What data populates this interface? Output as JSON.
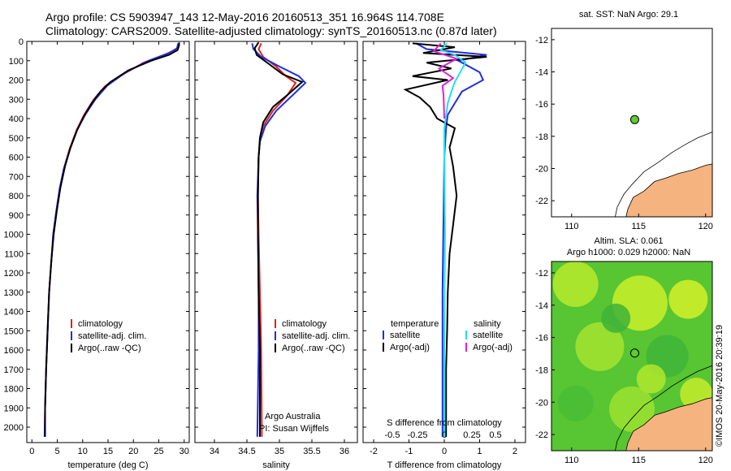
{
  "header": {
    "line1": "Argo profile: CS 5903947_143 12-May-2016 20160513_351 16.964S 114.708E",
    "line2": "Climatology: CARS2009. Satellite-adjusted climatology: synTS_20160513.nc (0.87d later)"
  },
  "colors": {
    "climatology": "#e02020",
    "satellite": "#1f2fe0",
    "argo": "#000000",
    "sal_satellite": "#20e0f0",
    "sal_argo": "#e020e0",
    "land": "#f4b37f",
    "dot": "#5ecb2f"
  },
  "depth_axis": {
    "ticks": [
      "0",
      "100",
      "200",
      "300",
      "400",
      "500",
      "600",
      "700",
      "800",
      "900",
      "1000",
      "1100",
      "1200",
      "1300",
      "1400",
      "1500",
      "1600",
      "1700",
      "1800",
      "1900",
      "2000"
    ],
    "range": [
      0,
      2080
    ]
  },
  "chart_data": [
    {
      "id": "temperature",
      "type": "line",
      "xlabel": "temperature (deg C)",
      "xlim": [
        -1,
        31
      ],
      "xticks": [
        "0",
        "5",
        "10",
        "15",
        "20",
        "25",
        "30"
      ],
      "ylim": [
        0,
        2080
      ],
      "legend": [
        "climatology",
        "satellite-adj. clim.",
        "Argo(..raw -QC)"
      ],
      "series": [
        {
          "name": "climatology",
          "points": [
            [
              29,
              10
            ],
            [
              28.5,
              40
            ],
            [
              26.5,
              65
            ],
            [
              22,
              110
            ],
            [
              18,
              170
            ],
            [
              14.5,
              230
            ],
            [
              12.2,
              300
            ],
            [
              10.3,
              380
            ],
            [
              8.8,
              460
            ],
            [
              7.4,
              560
            ],
            [
              6.3,
              660
            ],
            [
              5.5,
              760
            ],
            [
              4.8,
              880
            ],
            [
              4.2,
              1000
            ],
            [
              3.8,
              1150
            ],
            [
              3.4,
              1300
            ],
            [
              3.1,
              1500
            ],
            [
              2.8,
              1700
            ],
            [
              2.6,
              1900
            ],
            [
              2.5,
              2050
            ]
          ]
        },
        {
          "name": "satellite-adj. clim.",
          "points": [
            [
              28.8,
              10
            ],
            [
              28.6,
              35
            ],
            [
              27,
              60
            ],
            [
              23,
              100
            ],
            [
              18.5,
              160
            ],
            [
              14.8,
              230
            ],
            [
              12.5,
              300
            ],
            [
              10.5,
              380
            ],
            [
              8.9,
              460
            ],
            [
              7.5,
              560
            ],
            [
              6.3,
              660
            ],
            [
              5.5,
              760
            ],
            [
              4.8,
              880
            ],
            [
              4.2,
              1000
            ],
            [
              3.8,
              1150
            ],
            [
              3.4,
              1300
            ],
            [
              3.1,
              1500
            ],
            [
              2.8,
              1700
            ],
            [
              2.6,
              1900
            ],
            [
              2.5,
              2050
            ]
          ]
        },
        {
          "name": "Argo(..raw -QC)",
          "points": [
            [
              29,
              5
            ],
            [
              29,
              20
            ],
            [
              28.7,
              45
            ],
            [
              27,
              70
            ],
            [
              23.5,
              100
            ],
            [
              19,
              150
            ],
            [
              15.5,
              210
            ],
            [
              13.5,
              260
            ],
            [
              11.8,
              320
            ],
            [
              10.2,
              390
            ],
            [
              8.9,
              460
            ],
            [
              7.6,
              550
            ],
            [
              6.5,
              650
            ],
            [
              5.6,
              760
            ],
            [
              4.9,
              880
            ],
            [
              4.3,
              1000
            ],
            [
              3.8,
              1150
            ],
            [
              3.4,
              1300
            ],
            [
              3.1,
              1500
            ],
            [
              2.8,
              1700
            ],
            [
              2.6,
              1900
            ],
            [
              2.6,
              2050
            ]
          ]
        }
      ]
    },
    {
      "id": "salinity",
      "type": "line",
      "xlabel": "salinity",
      "xlim": [
        33.7,
        36.2
      ],
      "xticks": [
        "34",
        "34.5",
        "35",
        "35.5",
        "36"
      ],
      "ylim": [
        0,
        2080
      ],
      "legend": [
        "climatology",
        "satellite-adj. clim.",
        "Argo(..raw -QC)"
      ],
      "annotations": [
        "Argo Australia",
        "PI: Susan Wijffels"
      ],
      "series": [
        {
          "name": "climatology",
          "points": [
            [
              34.72,
              10
            ],
            [
              34.68,
              40
            ],
            [
              34.75,
              80
            ],
            [
              34.95,
              130
            ],
            [
              35.1,
              180
            ],
            [
              35.25,
              215
            ],
            [
              35.12,
              280
            ],
            [
              34.9,
              360
            ],
            [
              34.75,
              440
            ],
            [
              34.7,
              520
            ],
            [
              34.68,
              600
            ],
            [
              34.67,
              800
            ],
            [
              34.68,
              1000
            ],
            [
              34.7,
              1300
            ],
            [
              34.72,
              1600
            ],
            [
              34.73,
              2050
            ]
          ]
        },
        {
          "name": "satellite-adj. clim.",
          "points": [
            [
              34.58,
              10
            ],
            [
              34.6,
              40
            ],
            [
              34.72,
              80
            ],
            [
              35.0,
              130
            ],
            [
              35.3,
              180
            ],
            [
              35.4,
              215
            ],
            [
              35.2,
              280
            ],
            [
              34.95,
              360
            ],
            [
              34.78,
              440
            ],
            [
              34.7,
              520
            ],
            [
              34.68,
              600
            ],
            [
              34.66,
              800
            ],
            [
              34.67,
              1000
            ],
            [
              34.68,
              1300
            ],
            [
              34.68,
              1600
            ],
            [
              34.66,
              2050
            ]
          ]
        },
        {
          "name": "Argo(..raw -QC)",
          "points": [
            [
              34.68,
              5
            ],
            [
              34.62,
              35
            ],
            [
              34.65,
              70
            ],
            [
              34.85,
              120
            ],
            [
              35.05,
              170
            ],
            [
              35.35,
              210
            ],
            [
              35.15,
              270
            ],
            [
              34.9,
              340
            ],
            [
              34.75,
              420
            ],
            [
              34.7,
              500
            ],
            [
              34.68,
              600
            ],
            [
              34.67,
              800
            ],
            [
              34.67,
              1000
            ],
            [
              34.68,
              1300
            ],
            [
              34.7,
              1600
            ],
            [
              34.7,
              2050
            ]
          ]
        }
      ]
    },
    {
      "id": "difference",
      "type": "line",
      "xlabel": "T difference from climatology",
      "xlabel2": "S difference from climatology",
      "xlim": [
        -2.3,
        2.3
      ],
      "xticks": [
        "-2",
        "-1",
        "0",
        "1",
        "2"
      ],
      "xticks_s": [
        "-0.5",
        "-0.25",
        "0",
        "0.25",
        "0.5"
      ],
      "ylim": [
        0,
        2080
      ],
      "legend_temperature": [
        "temperature",
        "satellite",
        "Argo(-adj)"
      ],
      "legend_salinity": [
        "salinity",
        "satellite",
        "Argo(-adj)"
      ],
      "series": [
        {
          "name": "T satellite",
          "points": [
            [
              -0.8,
              10
            ],
            [
              -0.5,
              40
            ],
            [
              1.2,
              70
            ],
            [
              0.4,
              100
            ],
            [
              1.0,
              160
            ],
            [
              1.1,
              200
            ],
            [
              0.5,
              260
            ],
            [
              0.3,
              320
            ],
            [
              0.1,
              380
            ],
            [
              0.05,
              450
            ],
            [
              0.0,
              600
            ],
            [
              -0.02,
              900
            ],
            [
              -0.05,
              1300
            ],
            [
              -0.05,
              1700
            ],
            [
              -0.05,
              2050
            ]
          ]
        },
        {
          "name": "T Argo(-adj)",
          "points": [
            [
              -0.9,
              10
            ],
            [
              0.3,
              30
            ],
            [
              -0.6,
              60
            ],
            [
              1.2,
              80
            ],
            [
              -0.5,
              110
            ],
            [
              0.2,
              140
            ],
            [
              -0.9,
              180
            ],
            [
              0.1,
              200
            ],
            [
              -1.1,
              250
            ],
            [
              -0.7,
              290
            ],
            [
              -0.4,
              340
            ],
            [
              -0.2,
              400
            ],
            [
              0.3,
              450
            ],
            [
              0.15,
              550
            ],
            [
              0.25,
              650
            ],
            [
              0.35,
              800
            ],
            [
              0.25,
              950
            ],
            [
              0.15,
              1100
            ],
            [
              0.1,
              1300
            ],
            [
              0.08,
              1500
            ],
            [
              0.05,
              1700
            ],
            [
              0.05,
              1900
            ],
            [
              0.05,
              2050
            ]
          ]
        },
        {
          "name": "S satellite",
          "points": [
            [
              0.08,
              10
            ],
            [
              -0.1,
              45
            ],
            [
              0.3,
              70
            ],
            [
              0.6,
              110
            ],
            [
              0.45,
              160
            ],
            [
              0.3,
              210
            ],
            [
              0.2,
              260
            ],
            [
              0.1,
              320
            ],
            [
              0.0,
              450
            ],
            [
              0.0,
              600
            ],
            [
              0.02,
              1000
            ],
            [
              0.0,
              1500
            ],
            [
              0.0,
              2050
            ]
          ]
        },
        {
          "name": "S Argo(-adj)",
          "points": [
            [
              -0.1,
              10
            ],
            [
              -0.3,
              50
            ],
            [
              0.35,
              90
            ],
            [
              -0.15,
              140
            ],
            [
              0.25,
              190
            ],
            [
              -0.05,
              230
            ],
            [
              -0.02,
              280
            ],
            [
              0.0,
              400
            ]
          ]
        }
      ]
    }
  ],
  "map_top": {
    "title": "sat. SST: NaN Argo: 29.1",
    "xticks": [
      "110",
      "115",
      "120"
    ],
    "yticks": [
      "-12",
      "-14",
      "-16",
      "-18",
      "-20",
      "-22"
    ],
    "xlim": [
      108.5,
      120.5
    ],
    "ylim": [
      -23,
      -11.3
    ],
    "marker": [
      114.708,
      -16.964
    ]
  },
  "map_bottom": {
    "title_line1": "Altim. SLA: 0.061",
    "title_line2": "Argo h1000: 0.029 h2000: NaN",
    "xticks": [
      "110",
      "115",
      "120"
    ],
    "yticks": [
      "-12",
      "-14",
      "-16",
      "-18",
      "-20",
      "-22"
    ],
    "xlim": [
      108.5,
      120.5
    ],
    "ylim": [
      -23,
      -11.3
    ],
    "marker": [
      114.708,
      -16.964
    ]
  },
  "stamp": "©IMOS 20-May-2016 20:39:19"
}
